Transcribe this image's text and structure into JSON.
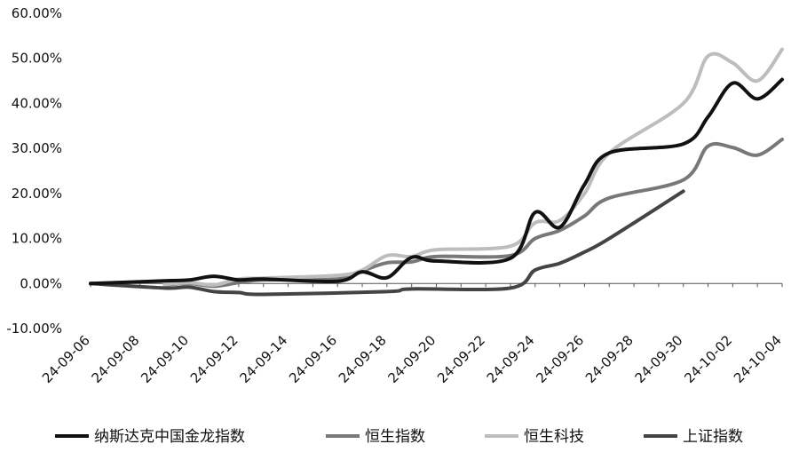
{
  "chart_data": {
    "type": "line",
    "title": "",
    "xlabel": "",
    "ylabel": "",
    "ylim": [
      -10,
      60
    ],
    "y_ticks": [
      "-10.00%",
      "0.00%",
      "10.00%",
      "20.00%",
      "30.00%",
      "40.00%",
      "50.00%",
      "60.00%"
    ],
    "x_ticks": [
      "24-09-06",
      "24-09-08",
      "24-09-10",
      "24-09-12",
      "24-09-14",
      "24-09-16",
      "24-09-18",
      "24-09-20",
      "24-09-22",
      "24-09-24",
      "24-09-26",
      "24-09-28",
      "24-09-30",
      "24-10-02",
      "24-10-04"
    ],
    "grid": false,
    "legend_position": "bottom",
    "series": [
      {
        "name": "纳斯达克中国金龙指数",
        "color": "#111111",
        "points": [
          [
            "24-09-06",
            0.0
          ],
          [
            "24-09-09",
            0.6
          ],
          [
            "24-09-10",
            0.8
          ],
          [
            "24-09-11",
            1.6
          ],
          [
            "24-09-12",
            0.8
          ],
          [
            "24-09-13",
            1.0
          ],
          [
            "24-09-16",
            0.5
          ],
          [
            "24-09-17",
            2.6
          ],
          [
            "24-09-18",
            1.3
          ],
          [
            "24-09-19",
            5.8
          ],
          [
            "24-09-20",
            5.0
          ],
          [
            "24-09-23",
            5.6
          ],
          [
            "24-09-24",
            15.8
          ],
          [
            "24-09-25",
            12.5
          ],
          [
            "24-09-26",
            22.0
          ],
          [
            "24-09-27",
            29.0
          ],
          [
            "24-09-30",
            31.0
          ],
          [
            "24-10-01",
            37.0
          ],
          [
            "24-10-02",
            44.5
          ],
          [
            "24-10-03",
            41.0
          ],
          [
            "24-10-04",
            45.3
          ]
        ]
      },
      {
        "name": "恒生指数",
        "color": "#787878",
        "points": [
          [
            "24-09-09",
            -0.3
          ],
          [
            "24-09-10",
            0.0
          ],
          [
            "24-09-11",
            -0.6
          ],
          [
            "24-09-12",
            0.2
          ],
          [
            "24-09-13",
            0.8
          ],
          [
            "24-09-16",
            1.0
          ],
          [
            "24-09-17",
            2.8
          ],
          [
            "24-09-18",
            4.6
          ],
          [
            "24-09-19",
            4.8
          ],
          [
            "24-09-20",
            6.0
          ],
          [
            "24-09-23",
            6.2
          ],
          [
            "24-09-24",
            10.0
          ],
          [
            "24-09-25",
            11.8
          ],
          [
            "24-09-26",
            15.0
          ],
          [
            "24-09-27",
            19.0
          ],
          [
            "24-09-30",
            23.0
          ],
          [
            "24-10-01",
            30.5
          ],
          [
            "24-10-02",
            30.2
          ],
          [
            "24-10-03",
            28.5
          ],
          [
            "24-10-04",
            32.0
          ]
        ]
      },
      {
        "name": "恒生科技",
        "color": "#bdbdbd",
        "points": [
          [
            "24-09-09",
            -0.2
          ],
          [
            "24-09-10",
            0.2
          ],
          [
            "24-09-11",
            -0.3
          ],
          [
            "24-09-12",
            1.0
          ],
          [
            "24-09-13",
            1.2
          ],
          [
            "24-09-16",
            1.8
          ],
          [
            "24-09-17",
            3.0
          ],
          [
            "24-09-18",
            6.2
          ],
          [
            "24-09-19",
            6.0
          ],
          [
            "24-09-20",
            7.5
          ],
          [
            "24-09-23",
            8.3
          ],
          [
            "24-09-24",
            13.5
          ],
          [
            "24-09-25",
            14.0
          ],
          [
            "24-09-26",
            20.0
          ],
          [
            "24-09-27",
            29.0
          ],
          [
            "24-09-30",
            40.0
          ],
          [
            "24-10-01",
            50.5
          ],
          [
            "24-10-02",
            49.0
          ],
          [
            "24-10-03",
            45.0
          ],
          [
            "24-10-04",
            52.0
          ]
        ]
      },
      {
        "name": "上证指数",
        "color": "#444444",
        "points": [
          [
            "24-09-06",
            0.0
          ],
          [
            "24-09-09",
            -1.0
          ],
          [
            "24-09-10",
            -0.8
          ],
          [
            "24-09-11",
            -1.8
          ],
          [
            "24-09-12",
            -2.0
          ],
          [
            "24-09-13",
            -2.4
          ],
          [
            "24-09-18",
            -1.8
          ],
          [
            "24-09-19",
            -1.2
          ],
          [
            "24-09-23",
            -1.0
          ],
          [
            "24-09-24",
            3.0
          ],
          [
            "24-09-25",
            4.5
          ],
          [
            "24-09-26",
            7.0
          ],
          [
            "24-09-27",
            10.0
          ],
          [
            "24-09-30",
            20.5
          ]
        ]
      }
    ]
  }
}
